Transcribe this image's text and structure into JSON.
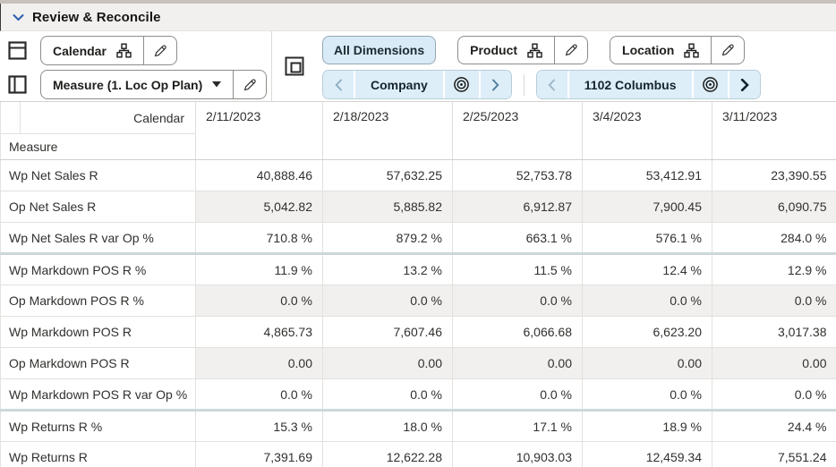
{
  "header": {
    "title": "Review & Reconcile"
  },
  "toolbar": {
    "row_col_axis": {
      "calendar_tile": {
        "label": "Calendar",
        "icons": [
          "hierarchy-icon",
          "edit-icon"
        ]
      },
      "measure_tile": {
        "label": "Measure (1. Loc Op Plan)",
        "icons": [
          "caret-down-icon",
          "edit-icon"
        ]
      }
    },
    "page_axis": {
      "all_dimensions_label": "All Dimensions",
      "product_tile": {
        "label": "Product",
        "icons": [
          "hierarchy-icon",
          "edit-icon"
        ]
      },
      "location_tile": {
        "label": "Location",
        "icons": [
          "hierarchy-icon",
          "edit-icon"
        ]
      },
      "pagers": [
        {
          "label": "Company",
          "icons": [
            "chevron-left-icon",
            "target-icon",
            "chevron-right-icon"
          ]
        },
        {
          "label": "1102 Columbus",
          "icons": [
            "chevron-left-icon",
            "target-icon",
            "chevron-right-icon"
          ]
        }
      ]
    }
  },
  "grid": {
    "corner_label": "Calendar",
    "row_axis_label": "Measure",
    "columns": [
      "2/11/2023",
      "2/18/2023",
      "2/25/2023",
      "3/4/2023",
      "3/11/2023"
    ],
    "rows": [
      {
        "label": "Wp Net Sales R",
        "readonly": false,
        "group_start": false,
        "values": [
          "40,888.46",
          "57,632.25",
          "52,753.78",
          "53,412.91",
          "23,390.55"
        ]
      },
      {
        "label": "Op Net Sales R",
        "readonly": true,
        "group_start": false,
        "values": [
          "5,042.82",
          "5,885.82",
          "6,912.87",
          "7,900.45",
          "6,090.75"
        ]
      },
      {
        "label": "Wp Net Sales R var Op %",
        "readonly": false,
        "group_start": false,
        "values": [
          "710.8 %",
          "879.2 %",
          "663.1 %",
          "576.1 %",
          "284.0 %"
        ]
      },
      {
        "label": "Wp Markdown POS R %",
        "readonly": false,
        "group_start": true,
        "values": [
          "11.9 %",
          "13.2 %",
          "11.5 %",
          "12.4 %",
          "12.9 %"
        ]
      },
      {
        "label": "Op Markdown POS R %",
        "readonly": true,
        "group_start": false,
        "values": [
          "0.0 %",
          "0.0 %",
          "0.0 %",
          "0.0 %",
          "0.0 %"
        ]
      },
      {
        "label": "Wp Markdown POS R",
        "readonly": false,
        "group_start": false,
        "values": [
          "4,865.73",
          "7,607.46",
          "6,066.68",
          "6,623.20",
          "3,017.38"
        ]
      },
      {
        "label": "Op Markdown POS R",
        "readonly": true,
        "group_start": false,
        "values": [
          "0.00",
          "0.00",
          "0.00",
          "0.00",
          "0.00"
        ]
      },
      {
        "label": "Wp Markdown POS R var Op %",
        "readonly": false,
        "group_start": false,
        "values": [
          "0.0 %",
          "0.0 %",
          "0.0 %",
          "0.0 %",
          "0.0 %"
        ]
      },
      {
        "label": "Wp Returns R %",
        "readonly": false,
        "group_start": true,
        "values": [
          "15.3 %",
          "18.0 %",
          "17.1 %",
          "18.9 %",
          "24.4 %"
        ]
      },
      {
        "label": "Wp Returns R",
        "readonly": false,
        "group_start": false,
        "values": [
          "7,391.69",
          "12,622.28",
          "10,903.03",
          "12,459.34",
          "7,551.24"
        ]
      }
    ]
  },
  "colors": {
    "top_strip": "#c6c1bb",
    "titlebar_bg": "#f1f0ee",
    "title_chevron": "#2a5db0",
    "selected_chip_bg": "#d8ebf7",
    "pager_segment_bg": "#ddeef8",
    "readonly_cell_bg": "#f1f0ef",
    "group_separator": "#ccd7db",
    "grid_line": "#e2e1de"
  }
}
